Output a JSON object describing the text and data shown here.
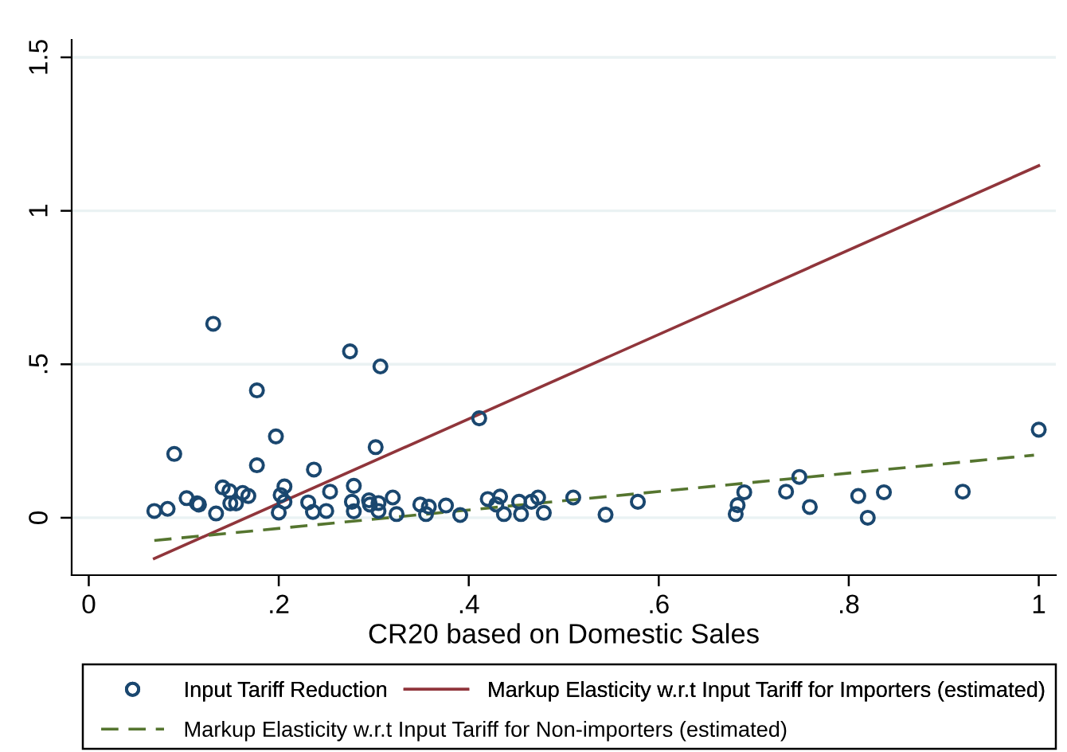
{
  "chart_data": {
    "type": "scatter",
    "xlabel": "CR20 based on Domestic Sales",
    "xlim": [
      -0.018,
      1.018
    ],
    "ylim": [
      -0.187,
      1.557
    ],
    "xticks": [
      0,
      {
        "value": 0.2,
        "label": ".2"
      },
      {
        "value": 0.4,
        "label": ".4"
      },
      {
        "value": 0.6,
        "label": ".6"
      },
      {
        "value": 0.8,
        "label": ".8"
      },
      1
    ],
    "yticks": [
      0,
      {
        "value": 0.5,
        "label": ".5"
      },
      1,
      1.5
    ],
    "grid": "y",
    "legend": "bottom",
    "series": [
      {
        "name": "Input Tariff Reduction",
        "marker": "circle",
        "color": "#1a476f",
        "x": [
          0.069,
          0.083,
          0.09,
          0.103,
          0.114,
          0.116,
          0.131,
          0.134,
          0.141,
          0.148,
          0.149,
          0.155,
          0.162,
          0.168,
          0.177,
          0.177,
          0.197,
          0.2,
          0.202,
          0.206,
          0.206,
          0.231,
          0.236,
          0.237,
          0.25,
          0.254,
          0.275,
          0.277,
          0.279,
          0.279,
          0.295,
          0.296,
          0.302,
          0.305,
          0.305,
          0.307,
          0.32,
          0.324,
          0.349,
          0.355,
          0.358,
          0.376,
          0.391,
          0.411,
          0.42,
          0.429,
          0.433,
          0.437,
          0.453,
          0.455,
          0.466,
          0.473,
          0.479,
          0.51,
          0.544,
          0.578,
          0.681,
          0.683,
          0.69,
          0.734,
          0.748,
          0.759,
          0.81,
          0.82,
          0.837,
          0.92,
          1.0
        ],
        "values": [
          0.022,
          0.029,
          0.208,
          0.064,
          0.047,
          0.043,
          0.632,
          0.014,
          0.099,
          0.087,
          0.047,
          0.047,
          0.081,
          0.071,
          0.415,
          0.171,
          0.265,
          0.017,
          0.074,
          0.102,
          0.052,
          0.05,
          0.019,
          0.157,
          0.022,
          0.085,
          0.542,
          0.052,
          0.104,
          0.021,
          0.057,
          0.043,
          0.23,
          0.048,
          0.022,
          0.493,
          0.066,
          0.012,
          0.043,
          0.012,
          0.036,
          0.04,
          0.009,
          0.324,
          0.061,
          0.043,
          0.069,
          0.012,
          0.052,
          0.012,
          0.052,
          0.066,
          0.016,
          0.066,
          0.01,
          0.052,
          0.012,
          0.041,
          0.083,
          0.085,
          0.133,
          0.035,
          0.071,
          0.0,
          0.083,
          0.085,
          0.287
        ]
      },
      {
        "name": "Markup Elasticity w.r.t Input Tariff for Importers (estimated)",
        "type": "line",
        "line_style": "solid",
        "color": "#90353b",
        "x": [
          0.069,
          1.0
        ],
        "values": [
          -0.133,
          1.147
        ]
      },
      {
        "name": "Markup Elasticity w.r.t Input Tariff for Non-importers (estimated)",
        "type": "line",
        "line_style": "dashed",
        "color": "#55752f",
        "x": [
          0.069,
          0.995
        ],
        "values": [
          -0.074,
          0.204
        ]
      }
    ]
  }
}
